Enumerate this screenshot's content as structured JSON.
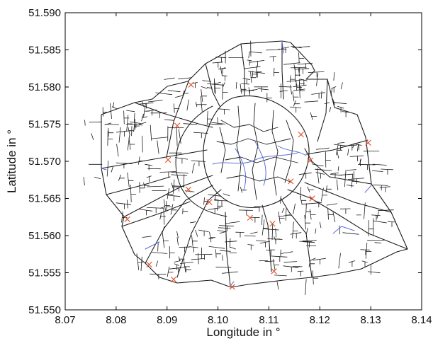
{
  "chart_data": {
    "type": "scatter",
    "title": "",
    "xlabel": "Longitude in °",
    "ylabel": "Latitude in °",
    "xlim": [
      8.07,
      8.14
    ],
    "ylim": [
      51.55,
      51.59
    ],
    "x_ticks": [
      "8.07",
      "8.08",
      "8.09",
      "8.10",
      "8.11",
      "8.12",
      "8.13",
      "8.14"
    ],
    "y_ticks": [
      "51.550",
      "51.555",
      "51.560",
      "51.565",
      "51.570",
      "51.575",
      "51.580",
      "51.585",
      "51.590"
    ],
    "grid": false,
    "legend": "none",
    "colors": {
      "road": "#1a1a1a",
      "waterway": "#5b6fd6",
      "marker": "#e0502a",
      "axes": "#000000"
    },
    "series": [
      {
        "values": [
          {
            "x": 8.0947,
            "y": 51.5803
          },
          {
            "x": 8.092,
            "y": 51.5748
          },
          {
            "x": 8.0902,
            "y": 51.5702
          },
          {
            "x": 8.0942,
            "y": 51.5662
          },
          {
            "x": 8.0983,
            "y": 51.5645
          },
          {
            "x": 8.0822,
            "y": 51.5622
          },
          {
            "x": 8.1063,
            "y": 51.5624
          },
          {
            "x": 8.1107,
            "y": 51.5616
          },
          {
            "x": 8.1185,
            "y": 51.565
          },
          {
            "x": 8.1143,
            "y": 51.5673
          },
          {
            "x": 8.1181,
            "y": 51.5701
          },
          {
            "x": 8.1163,
            "y": 51.5736
          },
          {
            "x": 8.1295,
            "y": 51.5725
          },
          {
            "x": 8.0865,
            "y": 51.5561
          },
          {
            "x": 8.0913,
            "y": 51.5541
          },
          {
            "x": 8.1028,
            "y": 51.5531
          },
          {
            "x": 8.111,
            "y": 51.5552
          }
        ]
      }
    ]
  }
}
